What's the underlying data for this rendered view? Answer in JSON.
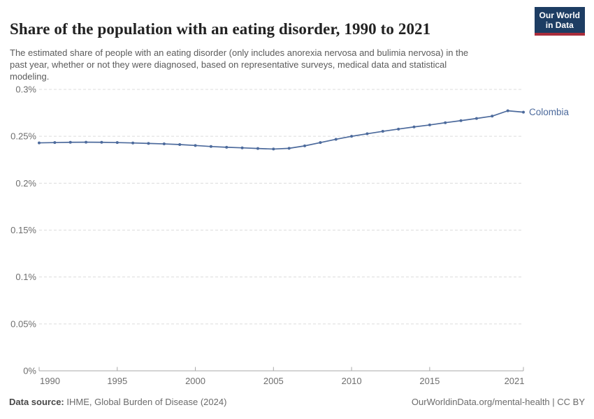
{
  "header": {
    "title": "Share of the population with an eating disorder, 1990 to 2021",
    "subtitle": "The estimated share of people with an eating disorder (only includes anorexia nervosa and bulimia nervosa) in the past year, whether or not they were diagnosed, based on representative surveys, medical data and statistical modeling.",
    "logo": {
      "line1": "Our World",
      "line2": "in Data",
      "bg_color": "#1d3d63",
      "accent_color": "#a92d3b"
    }
  },
  "chart_data": {
    "type": "line",
    "title": "Share of the population with an eating disorder, 1990 to 2021",
    "xlabel": "",
    "ylabel": "",
    "unit": "%",
    "x": [
      1990,
      1991,
      1992,
      1993,
      1994,
      1995,
      1996,
      1997,
      1998,
      1999,
      2000,
      2001,
      2002,
      2003,
      2004,
      2005,
      2006,
      2007,
      2008,
      2009,
      2010,
      2011,
      2012,
      2013,
      2014,
      2015,
      2016,
      2017,
      2018,
      2019,
      2020,
      2021
    ],
    "series": [
      {
        "name": "Colombia",
        "color": "#4C6A9C",
        "values": [
          0.243,
          0.2433,
          0.2436,
          0.2437,
          0.2436,
          0.2433,
          0.2429,
          0.2424,
          0.2419,
          0.2412,
          0.2402,
          0.2391,
          0.2383,
          0.2377,
          0.237,
          0.2364,
          0.2372,
          0.2398,
          0.2433,
          0.2468,
          0.25,
          0.2527,
          0.2553,
          0.2577,
          0.26,
          0.2621,
          0.2645,
          0.2667,
          0.269,
          0.2715,
          0.2772,
          0.2757
        ]
      }
    ],
    "ylim": [
      0,
      0.3
    ],
    "yticks": [
      0,
      0.05,
      0.1,
      0.15,
      0.2,
      0.25,
      0.3
    ],
    "ytick_labels": [
      "0%",
      "0.05%",
      "0.1%",
      "0.15%",
      "0.2%",
      "0.25%",
      "0.3%"
    ],
    "xticks": [
      1990,
      1995,
      2000,
      2005,
      2010,
      2015,
      2021
    ],
    "grid": "horizontal-dashed",
    "legend_position": "end-of-line-label",
    "colors": {
      "gridline": "#dcdcdc",
      "axis": "#a8a8a8",
      "tick_label": "#6e6e6e"
    }
  },
  "footer": {
    "datasource_label": "Data source:",
    "datasource_value": " IHME, Global Burden of Disease (2024)",
    "credit": "OurWorldinData.org/mental-health | CC BY"
  }
}
